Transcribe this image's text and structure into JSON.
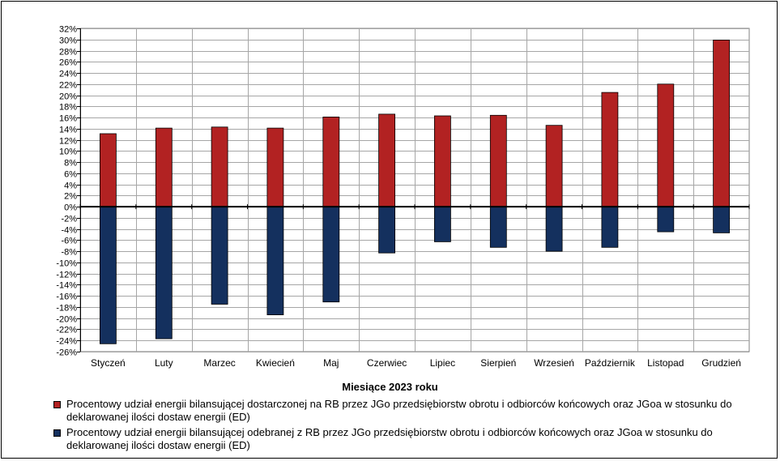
{
  "chart_data": {
    "type": "bar",
    "categories": [
      "Styczeń",
      "Luty",
      "Marzec",
      "Kwiecień",
      "Maj",
      "Czerwiec",
      "Lipiec",
      "Sierpień",
      "Wrzesień",
      "Październik",
      "Listopad",
      "Grudzień"
    ],
    "series": [
      {
        "name": "Procentowy udział energii bilansującej dostarczonej na RB przez JGo przedsiębiorstw obrotu i odbiorców końcowych oraz JGoa w stosunku do deklarowanej ilości dostaw energii (ED)",
        "color": "#b22222",
        "values": [
          13.1,
          14.1,
          14.3,
          14.1,
          16.1,
          16.6,
          16.3,
          16.4,
          14.6,
          20.5,
          22.0,
          29.9
        ]
      },
      {
        "name": "Procentowy udział energii bilansującej odebranej z RB przez JGo przedsiębiorstw obrotu i odbiorców końcowych oraz JGoa w stosunku do deklarowanej ilości dostaw energii (ED)",
        "color": "#14305e",
        "values": [
          -24.6,
          -23.7,
          -17.5,
          -19.4,
          -17.1,
          -8.3,
          -6.3,
          -7.3,
          -8.0,
          -7.3,
          -4.5,
          -4.7
        ]
      }
    ],
    "y_ticks": [
      "32%",
      "30%",
      "28%",
      "26%",
      "24%",
      "22%",
      "20%",
      "18%",
      "16%",
      "14%",
      "12%",
      "10%",
      "8%",
      "6%",
      "4%",
      "2%",
      "0%",
      "-2%",
      "-4%",
      "-6%",
      "-8%",
      "-10%",
      "-12%",
      "-14%",
      "-16%",
      "-18%",
      "-20%",
      "-22%",
      "-24%",
      "-26%"
    ],
    "ylim": [
      -26,
      32
    ],
    "ytick_step": 2,
    "xlabel": "Miesiące 2023  roku",
    "ylabel": "",
    "grid": true,
    "legend_position": "bottom"
  }
}
